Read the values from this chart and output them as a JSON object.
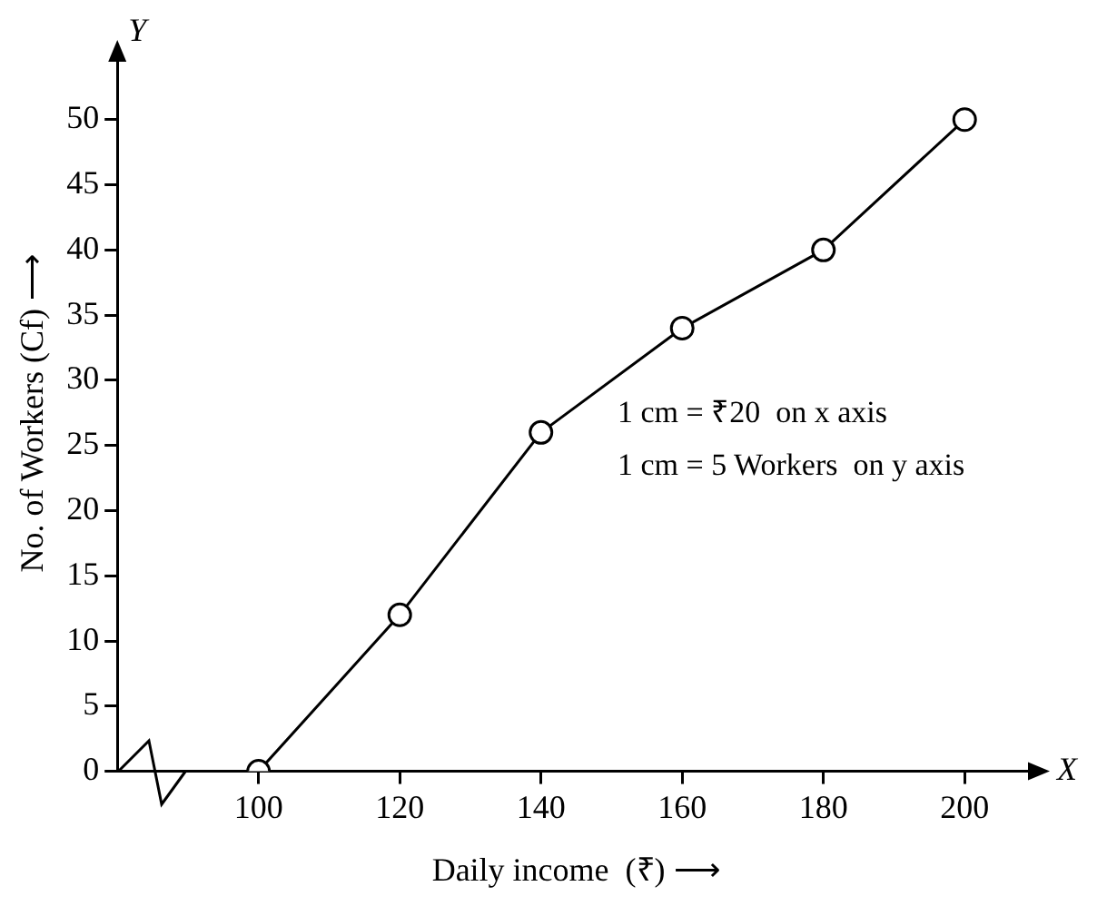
{
  "chart_data": {
    "type": "line",
    "xlabel": "Daily income  (₹) ⟶",
    "ylabel": "No. of Workers (Cf) ⟶",
    "x": [
      100,
      120,
      140,
      160,
      180,
      200
    ],
    "series": [
      {
        "color": "#000000",
        "values": [
          0,
          12,
          26,
          34,
          40,
          50
        ]
      }
    ],
    "xlim": [
      80,
      210
    ],
    "xticks": [
      100,
      120,
      140,
      160,
      180,
      200
    ],
    "ylim": [
      0,
      55
    ],
    "yticks": [
      0,
      5,
      10,
      15,
      20,
      25,
      30,
      35,
      40,
      45,
      50
    ],
    "grid": false,
    "legend": false,
    "marker": "circle",
    "line_style": "solid",
    "annotations": [
      "X",
      "Y",
      "1 cm = ₹20  on x axis",
      "1 cm = 5 Workers  on y axis"
    ]
  }
}
